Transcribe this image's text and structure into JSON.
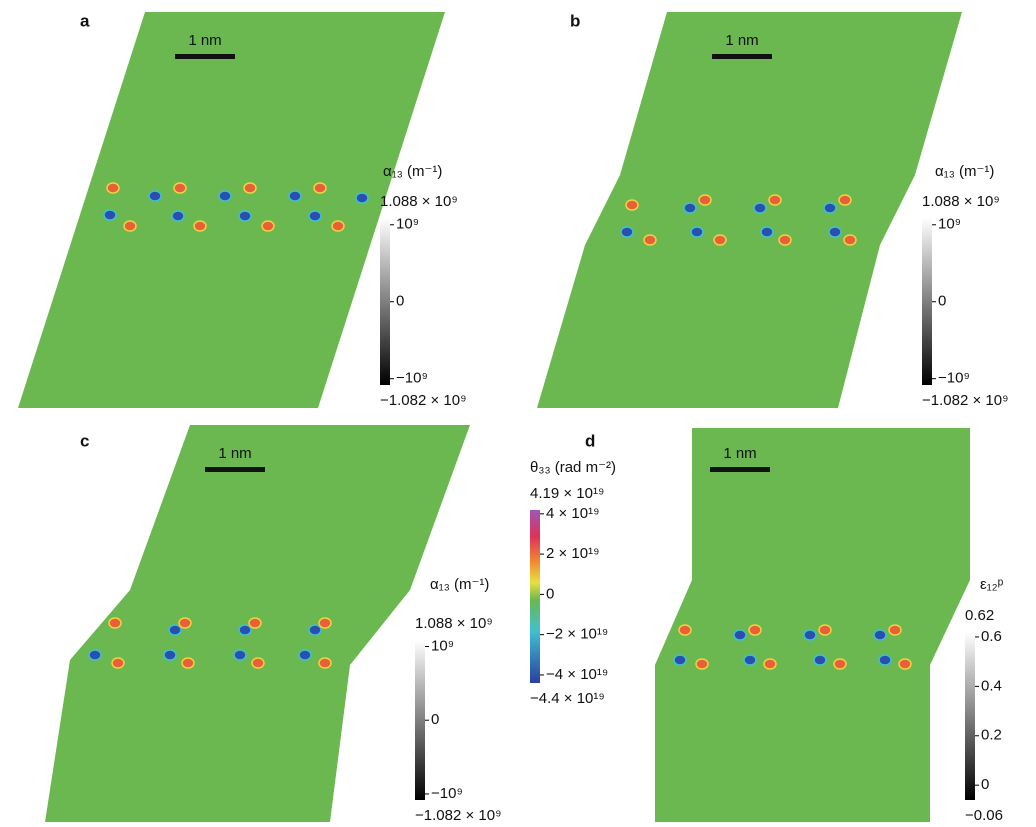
{
  "panels": [
    {
      "label": "a",
      "scale_bar": "1 nm",
      "colorbar": {
        "title": "α₁₃ (m⁻¹)",
        "max": {
          "value": 1088000000,
          "label": "1.088 × 10⁹"
        },
        "min": {
          "value": -1082000000,
          "label": "−1.082 × 10⁹"
        },
        "ticks": [
          {
            "value": 1000000000,
            "label": "10⁹"
          },
          {
            "value": 0,
            "label": "0"
          },
          {
            "value": -1000000000,
            "label": "−10⁹"
          }
        ]
      }
    },
    {
      "label": "b",
      "scale_bar": "1 nm",
      "colorbar": {
        "title": "α₁₃ (m⁻¹)",
        "max": {
          "value": 1088000000,
          "label": "1.088 × 10⁹"
        },
        "min": {
          "value": -1082000000,
          "label": "−1.082 × 10⁹"
        },
        "ticks": [
          {
            "value": 1000000000,
            "label": "10⁹"
          },
          {
            "value": 0,
            "label": "0"
          },
          {
            "value": -1000000000,
            "label": "−10⁹"
          }
        ]
      }
    },
    {
      "label": "c",
      "scale_bar": "1 nm",
      "colorbar": {
        "title": "α₁₃ (m⁻¹)",
        "max": {
          "value": 1088000000,
          "label": "1.088 × 10⁹"
        },
        "min": {
          "value": -1082000000,
          "label": "−1.082 × 10⁹"
        },
        "ticks": [
          {
            "value": 1000000000,
            "label": "10⁹"
          },
          {
            "value": 0,
            "label": "0"
          },
          {
            "value": -1000000000,
            "label": "−10⁹"
          }
        ]
      }
    },
    {
      "label": "d",
      "scale_bar": "1 nm",
      "colorbar": {
        "title": "ε₁₂ᵖ",
        "max": {
          "value": 0.62,
          "label": "0.62"
        },
        "min": {
          "value": -0.06,
          "label": "−0.06"
        },
        "ticks": [
          {
            "value": 0.6,
            "label": "0.6"
          },
          {
            "value": 0.4,
            "label": "0.4"
          },
          {
            "value": 0.2,
            "label": "0.2"
          },
          {
            "value": 0,
            "label": "0"
          }
        ]
      }
    }
  ],
  "shared_colorbar": {
    "title": "θ₃₃ (rad m⁻²)",
    "max": {
      "value": 4.19e+19,
      "label": "4.19 × 10¹⁹"
    },
    "min": {
      "value": -4.4e+19,
      "label": "−4.4 × 10¹⁹"
    },
    "ticks": [
      {
        "value": 4e+19,
        "label": "4 × 10¹⁹"
      },
      {
        "value": 2e+19,
        "label": "2 × 10¹⁹"
      },
      {
        "value": 0,
        "label": "0"
      },
      {
        "value": -2e+19,
        "label": "−2 × 10¹⁹"
      },
      {
        "value": -4e+19,
        "label": "−4 × 10¹⁹"
      }
    ]
  }
}
